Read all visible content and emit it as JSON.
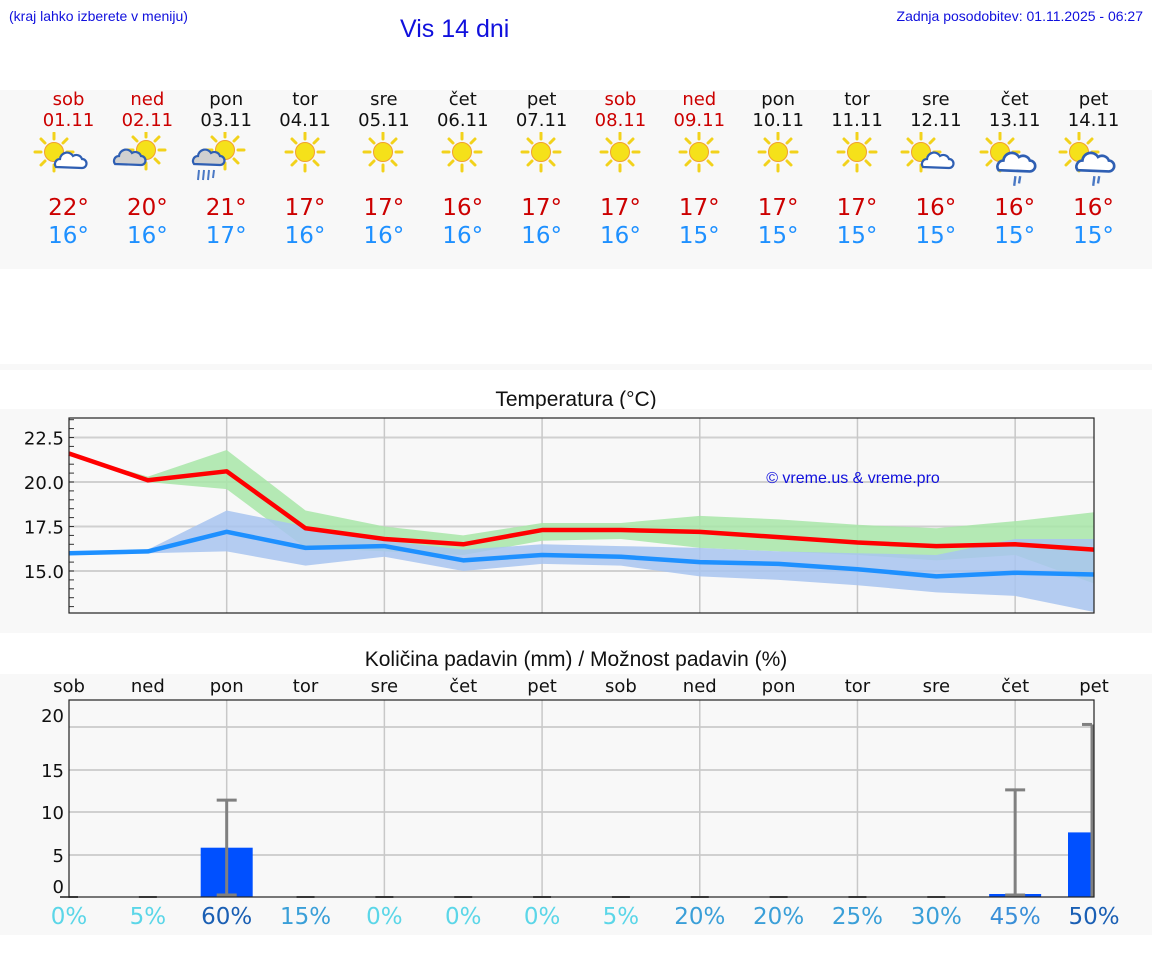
{
  "header": {
    "region_hint": "(kraj lahko izberete v meniju)",
    "title": "Vis 14 dni",
    "last_update": "Zadnja posodobitev: 01.11.2025 - 06:27"
  },
  "days": [
    {
      "name": "sob",
      "date": "01.11",
      "weekend": true,
      "icon": "sun-cloud-icon",
      "tmax": "22°",
      "tmin": "16°"
    },
    {
      "name": "ned",
      "date": "02.11",
      "weekend": true,
      "icon": "cloud-sun-icon",
      "tmax": "20°",
      "tmin": "16°"
    },
    {
      "name": "pon",
      "date": "03.11",
      "weekend": false,
      "icon": "cloud-sun-rain-icon",
      "tmax": "21°",
      "tmin": "17°"
    },
    {
      "name": "tor",
      "date": "04.11",
      "weekend": false,
      "icon": "sun-icon",
      "tmax": "17°",
      "tmin": "16°"
    },
    {
      "name": "sre",
      "date": "05.11",
      "weekend": false,
      "icon": "sun-icon",
      "tmax": "17°",
      "tmin": "16°"
    },
    {
      "name": "čet",
      "date": "06.11",
      "weekend": false,
      "icon": "sun-icon",
      "tmax": "16°",
      "tmin": "16°"
    },
    {
      "name": "pet",
      "date": "07.11",
      "weekend": false,
      "icon": "sun-icon",
      "tmax": "17°",
      "tmin": "16°"
    },
    {
      "name": "sob",
      "date": "08.11",
      "weekend": true,
      "icon": "sun-icon",
      "tmax": "17°",
      "tmin": "16°"
    },
    {
      "name": "ned",
      "date": "09.11",
      "weekend": true,
      "icon": "sun-icon",
      "tmax": "17°",
      "tmin": "15°"
    },
    {
      "name": "pon",
      "date": "10.11",
      "weekend": false,
      "icon": "sun-icon",
      "tmax": "17°",
      "tmin": "15°"
    },
    {
      "name": "tor",
      "date": "11.11",
      "weekend": false,
      "icon": "sun-icon",
      "tmax": "17°",
      "tmin": "15°"
    },
    {
      "name": "sre",
      "date": "12.11",
      "weekend": false,
      "icon": "sun-cloud-icon",
      "tmax": "16°",
      "tmin": "15°"
    },
    {
      "name": "čet",
      "date": "13.11",
      "weekend": false,
      "icon": "sun-cloud-drizzle-icon",
      "tmax": "16°",
      "tmin": "15°"
    },
    {
      "name": "pet",
      "date": "14.11",
      "weekend": false,
      "icon": "sun-cloud-drizzle-icon",
      "tmax": "16°",
      "tmin": "15°"
    }
  ],
  "colors": {
    "weekend": "#cc0000",
    "weekday": "#111111",
    "tmax": "#cc0000",
    "tmin": "#1e90ff",
    "max_line": "#ff0000",
    "min_line": "#1e90ff",
    "max_band": "#a8e6a8",
    "min_band": "#a8c4f0",
    "precip_bar": "#0050ff",
    "error_bar": "#808080",
    "header_text": "#1010dd"
  },
  "chart_data": [
    {
      "type": "line",
      "title": "Temperatura (°C)",
      "xlabel": "",
      "ylabel": "",
      "x": [
        "01.11",
        "02.11",
        "03.11",
        "04.11",
        "05.11",
        "06.11",
        "07.11",
        "08.11",
        "09.11",
        "10.11",
        "11.11",
        "12.11",
        "13.11",
        "14.11"
      ],
      "yticks": [
        "22.5",
        "20.0",
        "17.5",
        "15.0"
      ],
      "ylim": [
        12.6,
        23.6
      ],
      "grid": true,
      "watermark": "© vreme.us & vreme.pro",
      "series": [
        {
          "name": "max",
          "color": "#ff0000",
          "values": [
            21.6,
            20.1,
            20.6,
            17.4,
            16.8,
            16.5,
            17.3,
            17.3,
            17.2,
            16.9,
            16.6,
            16.4,
            16.5,
            16.2
          ],
          "band_low": [
            21.6,
            20.0,
            19.6,
            16.3,
            16.1,
            15.9,
            16.7,
            16.8,
            16.3,
            16.1,
            15.9,
            15.6,
            15.9,
            14.3
          ],
          "band_high": [
            21.6,
            20.3,
            21.8,
            18.4,
            17.5,
            17.0,
            17.7,
            17.7,
            18.1,
            17.9,
            17.6,
            17.4,
            17.8,
            18.3
          ]
        },
        {
          "name": "min",
          "color": "#1e90ff",
          "values": [
            16.0,
            16.1,
            17.2,
            16.3,
            16.4,
            15.6,
            15.9,
            15.8,
            15.5,
            15.4,
            15.1,
            14.7,
            14.9,
            14.8
          ],
          "band_low": [
            16.0,
            16.0,
            16.1,
            15.3,
            15.8,
            15.0,
            15.4,
            15.3,
            14.7,
            14.5,
            14.2,
            13.8,
            13.6,
            12.7
          ],
          "band_high": [
            16.0,
            16.2,
            18.4,
            17.5,
            16.7,
            16.2,
            16.5,
            16.4,
            16.3,
            16.1,
            16.0,
            15.9,
            16.8,
            16.8
          ]
        }
      ]
    },
    {
      "type": "bar",
      "title": "Količina padavin (mm) / Možnost padavin (%)",
      "categories": [
        "sob",
        "ned",
        "pon",
        "tor",
        "sre",
        "čet",
        "pet",
        "sob",
        "ned",
        "pon",
        "tor",
        "sre",
        "čet",
        "pet"
      ],
      "yticks": [
        "20",
        "15",
        "10",
        "5",
        "0"
      ],
      "ylim": [
        -1.0,
        21.5
      ],
      "grid": true,
      "series": [
        {
          "name": "precip_mm",
          "values": [
            0,
            0,
            5.8,
            0,
            0,
            0,
            0,
            0,
            0,
            0,
            0,
            0,
            0.2,
            7.6
          ]
        },
        {
          "name": "precip_max_mm",
          "values": [
            0,
            0,
            11.4,
            0,
            0,
            0,
            0,
            0,
            0,
            0,
            0,
            0,
            12.6,
            20.3
          ]
        },
        {
          "name": "precip_chance_pct",
          "values": [
            0,
            5,
            60,
            15,
            0,
            0,
            0,
            5,
            20,
            20,
            25,
            30,
            45,
            50
          ]
        }
      ],
      "chance_labels": [
        "0%",
        "5%",
        "60%",
        "15%",
        "0%",
        "0%",
        "0%",
        "5%",
        "20%",
        "20%",
        "25%",
        "30%",
        "45%",
        "50%"
      ],
      "chance_colors": [
        "#5bd6e8",
        "#5bd6e8",
        "#1a5fb4",
        "#3a9fd8",
        "#5bd6e8",
        "#5bd6e8",
        "#5bd6e8",
        "#5bd6e8",
        "#3a9fd8",
        "#3a9fd8",
        "#3a9fd8",
        "#3a9fd8",
        "#3a8fd8",
        "#1a5fb4"
      ]
    }
  ]
}
